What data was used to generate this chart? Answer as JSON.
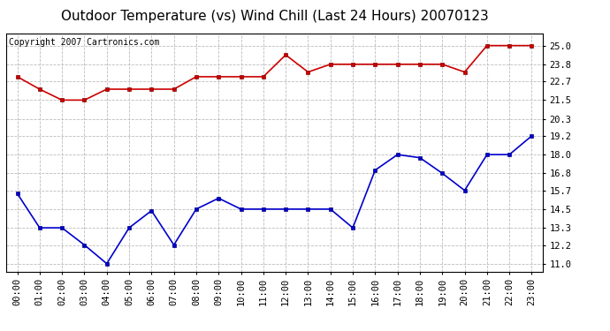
{
  "title": "Outdoor Temperature (vs) Wind Chill (Last 24 Hours) 20070123",
  "copyright_text": "Copyright 2007 Cartronics.com",
  "hours": [
    "00:00",
    "01:00",
    "02:00",
    "03:00",
    "04:00",
    "05:00",
    "06:00",
    "07:00",
    "08:00",
    "09:00",
    "10:00",
    "11:00",
    "12:00",
    "13:00",
    "14:00",
    "15:00",
    "16:00",
    "17:00",
    "18:00",
    "19:00",
    "20:00",
    "21:00",
    "22:00",
    "23:00"
  ],
  "red_data": [
    23.0,
    22.2,
    21.5,
    21.5,
    22.2,
    22.2,
    22.2,
    22.2,
    23.0,
    23.0,
    23.0,
    23.0,
    24.4,
    23.3,
    23.8,
    23.8,
    23.8,
    23.8,
    23.8,
    23.8,
    23.3,
    25.0,
    25.0,
    25.0
  ],
  "blue_data": [
    15.5,
    13.3,
    13.3,
    12.2,
    11.0,
    13.3,
    14.4,
    12.2,
    14.5,
    15.2,
    14.5,
    14.5,
    14.5,
    14.5,
    14.5,
    13.3,
    17.0,
    18.0,
    17.8,
    16.8,
    15.7,
    18.0,
    18.0,
    19.2
  ],
  "yticks": [
    11.0,
    12.2,
    13.3,
    14.5,
    15.7,
    16.8,
    18.0,
    19.2,
    20.3,
    21.5,
    22.7,
    23.8,
    25.0
  ],
  "red_color": "#cc0000",
  "blue_color": "#0000cc",
  "bg_color": "#ffffff",
  "plot_bg_color": "#ffffff",
  "grid_color": "#bbbbbb",
  "title_fontsize": 11,
  "copyright_fontsize": 7,
  "tick_fontsize": 7.5
}
